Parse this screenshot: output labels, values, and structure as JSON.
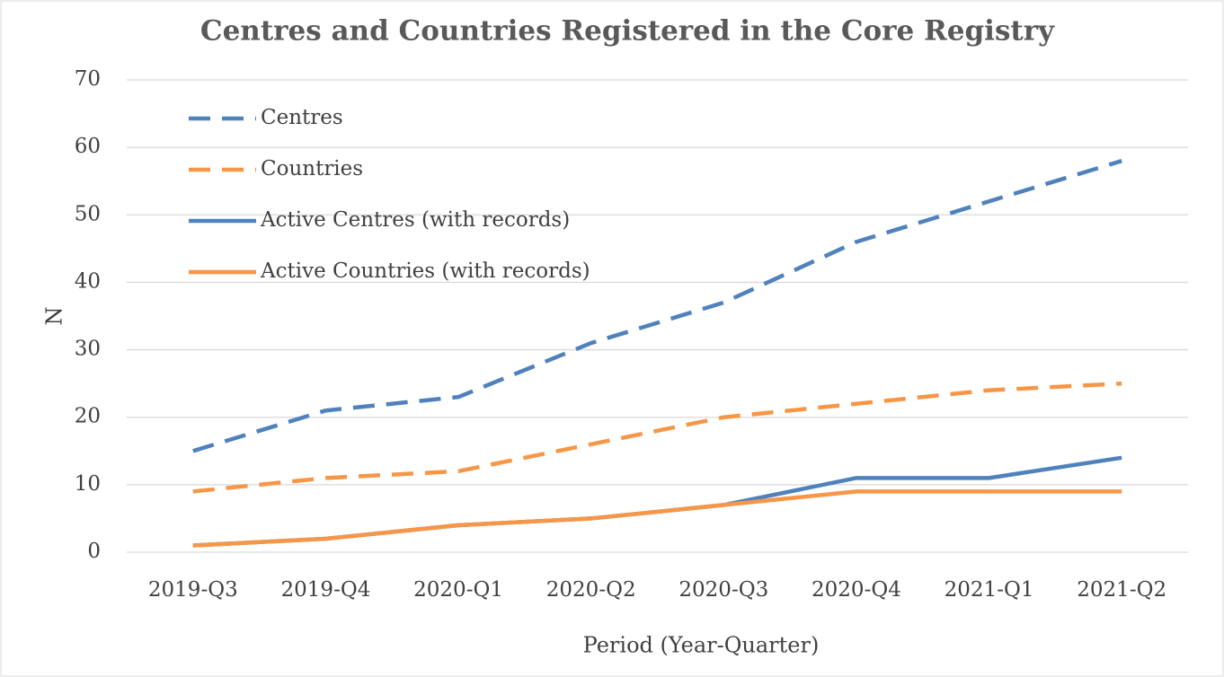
{
  "chart_data": {
    "type": "line",
    "title": "Centres and Countries Registered in the Core Registry",
    "x_label": "Period (Year-Quarter)",
    "y_label": "N",
    "categories": [
      "2019-Q3",
      "2019-Q4",
      "2020-Q1",
      "2020-Q2",
      "2020-Q3",
      "2020-Q4",
      "2021-Q1",
      "2021-Q2"
    ],
    "series": [
      {
        "name": "Centres",
        "color": "#4f81bd",
        "dashed": true,
        "values": [
          15,
          21,
          23,
          31,
          37,
          46,
          52,
          58
        ]
      },
      {
        "name": "Countries",
        "color": "#f79646",
        "dashed": true,
        "values": [
          9,
          11,
          12,
          16,
          20,
          22,
          24,
          25
        ]
      },
      {
        "name": "Active Centres (with records)",
        "color": "#4f81bd",
        "dashed": false,
        "values": [
          1,
          2,
          4,
          5,
          7,
          11,
          11,
          14
        ]
      },
      {
        "name": "Active Countries (with records)",
        "color": "#f79646",
        "dashed": false,
        "values": [
          1,
          2,
          4,
          5,
          7,
          9,
          9,
          9
        ]
      }
    ],
    "ylim": [
      0,
      70
    ],
    "yticks": [
      0,
      10,
      20,
      30,
      40,
      50,
      60,
      70
    ],
    "grid": true,
    "legend": "upper left"
  }
}
